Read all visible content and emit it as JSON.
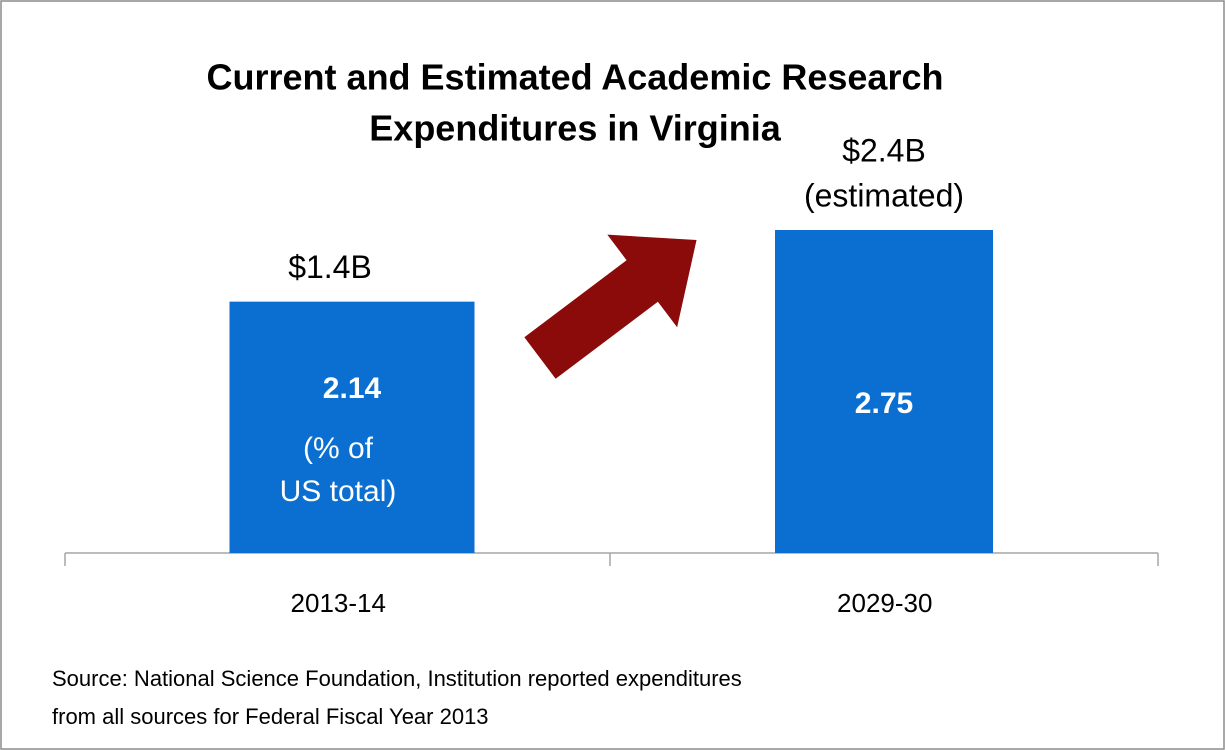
{
  "chart_data": {
    "type": "bar",
    "title": [
      "Current and Estimated Academic Research",
      "Expenditures in Virginia"
    ],
    "categories": [
      "2013-14",
      "2029-30"
    ],
    "values": [
      2.14,
      2.75
    ],
    "color": "#0a6fd0",
    "top_labels": [
      [
        "$1.4B"
      ],
      [
        "$2.4B",
        "(estimated)"
      ]
    ],
    "unit_note": [
      "(% of",
      "US total)"
    ],
    "source": [
      "Source: National Science Foundation, Institution reported expenditures",
      "from all sources for Federal Fiscal Year 2013"
    ]
  }
}
